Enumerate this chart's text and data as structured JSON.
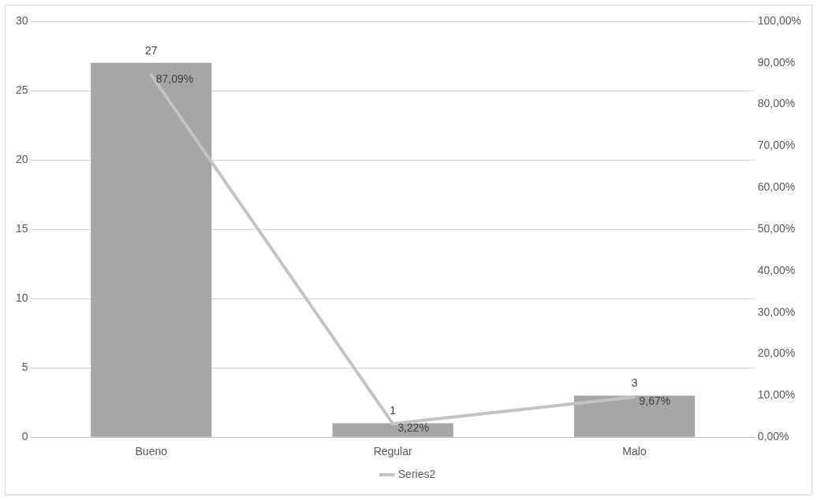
{
  "chart_data": {
    "type": "bar",
    "categories": [
      "Bueno",
      "Regular",
      "Malo"
    ],
    "series": [
      {
        "color": "#a6a6a6",
        "values": [
          27,
          1,
          3
        ],
        "value_labels": [
          "27",
          "1",
          "3"
        ]
      },
      {
        "type": "line",
        "name": "Series2",
        "color": "#c3c3c3",
        "axis": "y2",
        "values": [
          87.09,
          3.22,
          9.67
        ],
        "value_labels": [
          "87,09%",
          "3,22%",
          "9,67%"
        ]
      }
    ],
    "ylim": [
      0,
      30
    ],
    "yticks": [
      0,
      5,
      10,
      15,
      20,
      25,
      30
    ],
    "y2lim": [
      0,
      100
    ],
    "y2ticks": [
      {
        "value": 0,
        "label": "0,00%"
      },
      {
        "value": 10,
        "label": "10,00%"
      },
      {
        "value": 20,
        "label": "20,00%"
      },
      {
        "value": 30,
        "label": "30,00%"
      },
      {
        "value": 40,
        "label": "40,00%"
      },
      {
        "value": 50,
        "label": "50,00%"
      },
      {
        "value": 60,
        "label": "60,00%"
      },
      {
        "value": 70,
        "label": "70,00%"
      },
      {
        "value": 80,
        "label": "80,00%"
      },
      {
        "value": 90,
        "label": "90,00%"
      },
      {
        "value": 100,
        "label": "100,00%"
      }
    ],
    "grid": "y",
    "legend": "bottom",
    "marker": "none",
    "line_style": "solid"
  }
}
